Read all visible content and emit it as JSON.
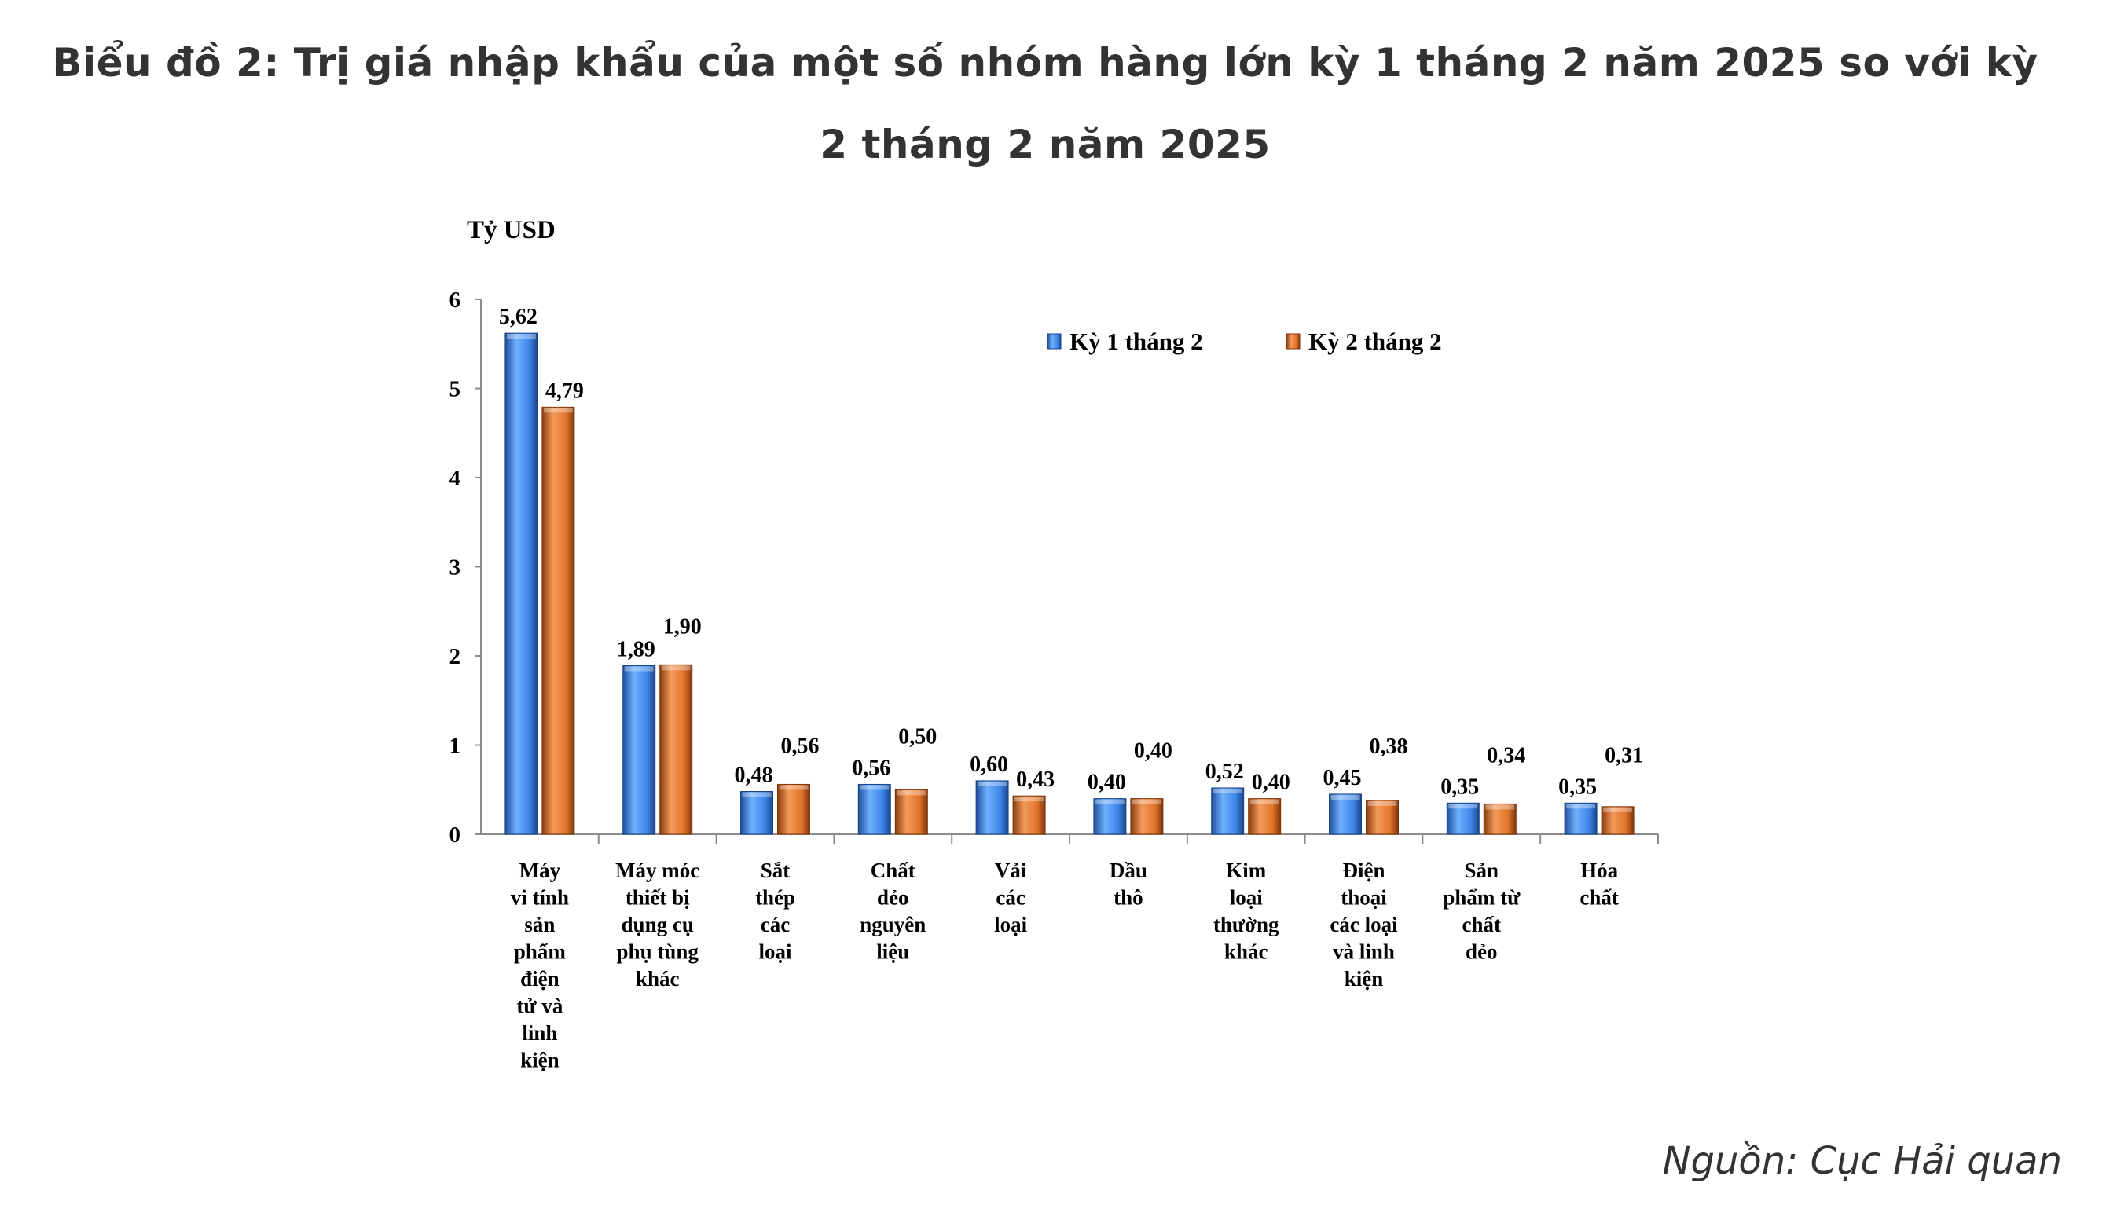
{
  "title": "Biểu đồ 2: Trị giá nhập khẩu của một số nhóm hàng lớn kỳ 1 tháng 2 năm 2025 so với kỳ 2 tháng 2 năm 2025",
  "source": "Nguồn: Cục Hải quan",
  "colors": {
    "series1": "#3d85e8",
    "series2": "#e0742a"
  },
  "chart_data": {
    "type": "bar",
    "ylabel": "Tỷ USD",
    "ylim": [
      0,
      6
    ],
    "yticks": [
      "0",
      "1",
      "2",
      "3",
      "4",
      "5",
      "6"
    ],
    "grid": false,
    "legend_position": "top-right",
    "categories": [
      [
        "Máy",
        "vi tính",
        "sản",
        "phẩm",
        "điện",
        "tử và",
        "linh",
        "kiện"
      ],
      [
        "Máy móc",
        "thiết bị",
        "dụng cụ",
        "phụ tùng",
        "khác"
      ],
      [
        "Sắt",
        "thép",
        "các",
        "loại"
      ],
      [
        "Chất",
        "dẻo",
        "nguyên",
        "liệu"
      ],
      [
        "Vải",
        "các",
        "loại"
      ],
      [
        "Dầu",
        "thô"
      ],
      [
        "Kim",
        "loại",
        "thường",
        "khác"
      ],
      [
        "Điện",
        "thoại",
        "các loại",
        "và linh",
        "kiện"
      ],
      [
        "Sản",
        "phẩm từ",
        "chất",
        "dẻo"
      ],
      [
        "Hóa",
        "chất"
      ]
    ],
    "series": [
      {
        "name": "Kỳ 1 tháng 2",
        "values": [
          5.62,
          1.89,
          0.48,
          0.56,
          0.6,
          0.4,
          0.52,
          0.45,
          0.35,
          0.35
        ],
        "labels": [
          "5,62",
          "1,89",
          "0,48",
          "0,56",
          "0,60",
          "0,40",
          "0,52",
          "0,45",
          "0,35",
          "0,35"
        ]
      },
      {
        "name": "Kỳ 2 tháng 2",
        "values": [
          4.79,
          1.9,
          0.56,
          0.5,
          0.43,
          0.4,
          0.4,
          0.38,
          0.34,
          0.31
        ],
        "labels": [
          "4,79",
          "1,90",
          "0,56",
          "0,50",
          "0,43",
          "0,40",
          "0,40",
          "0,38",
          "0,34",
          "0,31"
        ]
      }
    ]
  }
}
